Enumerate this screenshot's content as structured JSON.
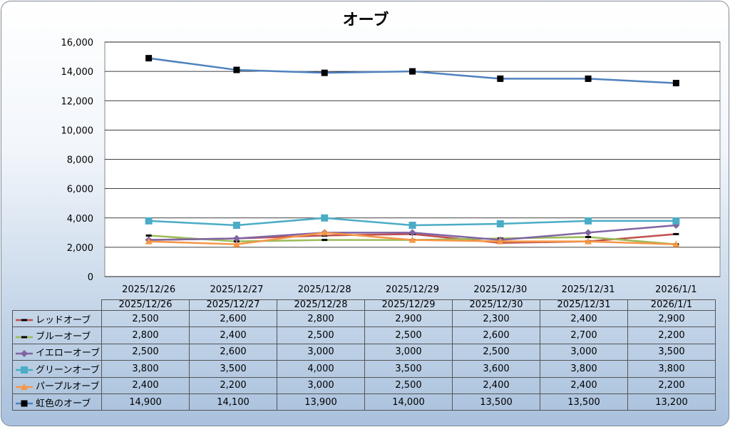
{
  "chart_data": {
    "type": "line",
    "title": "オーブ",
    "categories": [
      "2025/12/26",
      "2025/12/27",
      "2025/12/28",
      "2025/12/29",
      "2025/12/30",
      "2025/12/31",
      "2026/1/1"
    ],
    "ylim": [
      0,
      16000
    ],
    "yticks": [
      0,
      2000,
      4000,
      6000,
      8000,
      10000,
      12000,
      14000,
      16000
    ],
    "ytick_labels": [
      "0",
      "2,000",
      "4,000",
      "6,000",
      "8,000",
      "10,000",
      "12,000",
      "14,000",
      "16,000"
    ],
    "grid": true,
    "legend": "data-table",
    "series": [
      {
        "name": "レッドオーブ",
        "color": "#c0504d",
        "marker": "dash",
        "values": [
          2500,
          2600,
          2800,
          2900,
          2300,
          2400,
          2900
        ],
        "labels": [
          "2,500",
          "2,600",
          "2,800",
          "2,900",
          "2,300",
          "2,400",
          "2,900"
        ]
      },
      {
        "name": "ブルーオーブ",
        "color": "#9bbb59",
        "marker": "dash",
        "values": [
          2800,
          2400,
          2500,
          2500,
          2600,
          2700,
          2200
        ],
        "labels": [
          "2,800",
          "2,400",
          "2,500",
          "2,500",
          "2,600",
          "2,700",
          "2,200"
        ]
      },
      {
        "name": "イエローオーブ",
        "color": "#8064a2",
        "marker": "diamond",
        "values": [
          2500,
          2600,
          3000,
          3000,
          2500,
          3000,
          3500
        ],
        "labels": [
          "2,500",
          "2,600",
          "3,000",
          "3,000",
          "2,500",
          "3,000",
          "3,500"
        ]
      },
      {
        "name": "グリーンオーブ",
        "color": "#4bacc6",
        "marker": "square",
        "values": [
          3800,
          3500,
          4000,
          3500,
          3600,
          3800,
          3800
        ],
        "labels": [
          "3,800",
          "3,500",
          "4,000",
          "3,500",
          "3,600",
          "3,800",
          "3,800"
        ]
      },
      {
        "name": "パープルオーブ",
        "color": "#f79646",
        "marker": "triangle",
        "values": [
          2400,
          2200,
          3000,
          2500,
          2400,
          2400,
          2200
        ],
        "labels": [
          "2,400",
          "2,200",
          "3,000",
          "2,500",
          "2,400",
          "2,400",
          "2,200"
        ]
      },
      {
        "name": "虹色のオーブ",
        "color": "#4f81bd",
        "marker": "square-black",
        "values": [
          14900,
          14100,
          13900,
          14000,
          13500,
          13500,
          13200
        ],
        "labels": [
          "14,900",
          "14,100",
          "13,900",
          "14,000",
          "13,500",
          "13,500",
          "13,200"
        ]
      }
    ]
  }
}
